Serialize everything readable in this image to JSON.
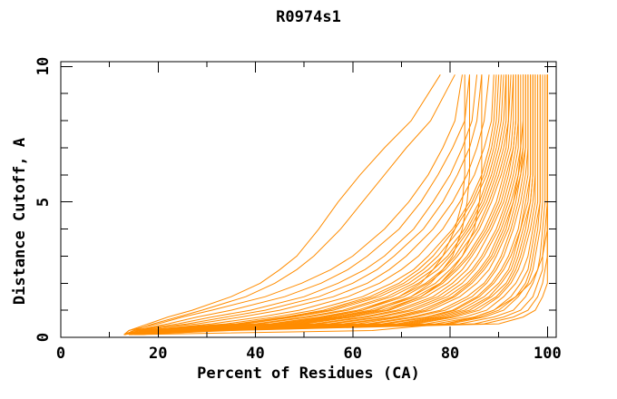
{
  "title": "R0974s1",
  "colors": {
    "curve": "#ff8c00",
    "axis": "#000000",
    "background": "#ffffff",
    "text": "#000000"
  },
  "chart_data": {
    "type": "line",
    "title": "R0974s1",
    "xlabel": "Percent of Residues (CA)",
    "ylabel": "Distance Cutoff, A",
    "xlim": [
      0,
      101.8
    ],
    "ylim": [
      0,
      10.18
    ],
    "grid": false,
    "legend": "none",
    "x_major_ticks": [
      0,
      20,
      40,
      60,
      80,
      100
    ],
    "x_minor_ticks": [
      10,
      30,
      50,
      70,
      90
    ],
    "y_major_ticks": [
      0,
      5,
      10
    ],
    "y_minor_ticks": [
      1,
      2,
      3,
      4,
      6,
      7,
      8,
      9
    ],
    "line_color": "#ff8c00",
    "cutoffs": [
      0.1,
      0.25,
      0.5,
      0.75,
      1,
      1.5,
      2,
      2.5,
      3,
      4,
      5,
      6,
      7,
      8,
      9.7
    ],
    "series": [
      [
        15,
        64,
        79,
        85,
        89,
        93.5,
        96.5,
        98,
        99,
        100,
        100,
        100,
        100,
        100,
        100
      ],
      [
        15,
        35,
        90,
        95,
        97.5,
        99,
        100,
        100,
        100,
        100,
        100,
        100,
        100,
        100,
        100
      ],
      [
        16,
        33,
        87,
        93,
        96,
        98,
        99,
        99.5,
        100,
        100,
        100,
        100,
        100,
        100,
        100
      ],
      [
        15,
        32,
        85,
        91,
        94.5,
        97,
        98,
        99,
        99,
        99.5,
        100,
        100,
        100,
        100,
        100
      ],
      [
        14,
        30,
        82,
        89,
        93,
        95.5,
        97,
        98,
        98.5,
        99,
        99.5,
        99.5,
        99.5,
        99.5,
        99.5
      ],
      [
        16,
        31,
        80,
        87,
        91,
        94,
        96,
        97,
        97.5,
        98.5,
        99,
        99,
        99,
        99,
        99
      ],
      [
        15,
        29,
        77,
        85,
        89,
        92.5,
        94.5,
        96,
        96.5,
        97.5,
        98.5,
        98.5,
        98.5,
        98.5,
        98.5
      ],
      [
        14,
        28,
        75,
        83,
        87.5,
        91,
        93.5,
        95,
        96,
        97,
        98,
        98,
        98,
        98,
        98
      ],
      [
        15,
        27,
        72,
        80,
        85,
        89.5,
        92,
        93.5,
        94.5,
        96,
        97,
        97.5,
        97.5,
        97.5,
        97.5
      ],
      [
        16,
        26,
        70,
        78,
        83,
        88,
        90.5,
        92.5,
        93.5,
        95,
        96.5,
        97,
        97,
        97,
        97
      ],
      [
        14,
        25,
        67,
        76,
        81,
        86,
        89,
        91,
        92.5,
        94.5,
        95.5,
        96.5,
        96.5,
        96.5,
        96.5
      ],
      [
        15,
        24,
        64,
        73,
        79,
        84.5,
        87.5,
        89.5,
        91,
        93,
        94.5,
        95.5,
        96,
        96,
        96
      ],
      [
        14,
        23,
        61,
        70,
        76,
        82,
        85.5,
        88,
        89.5,
        92,
        93.5,
        94.5,
        95.5,
        95.5,
        95.5
      ],
      [
        16,
        25,
        58,
        68,
        74,
        80.5,
        84,
        86.5,
        88.5,
        91,
        93,
        94,
        95,
        95,
        95
      ],
      [
        14,
        22,
        55,
        65,
        71.5,
        78.5,
        82.5,
        85,
        87,
        90,
        92,
        93.5,
        94.5,
        94.5,
        94.5
      ],
      [
        15,
        21,
        52,
        62,
        69,
        76.5,
        80.5,
        83.5,
        85.5,
        88.5,
        91,
        92.5,
        93.5,
        94,
        94
      ],
      [
        14,
        20,
        49,
        59,
        66,
        74,
        78.5,
        81.5,
        84,
        87.5,
        90,
        91.5,
        93,
        93.5,
        93.5
      ],
      [
        15,
        19,
        46,
        56,
        63.5,
        72,
        77,
        80,
        82.5,
        86,
        88.5,
        90.5,
        92,
        92.5,
        93
      ],
      [
        14,
        18,
        43,
        53,
        61,
        69.5,
        75,
        78.5,
        81,
        84.5,
        87.5,
        89.5,
        91,
        92,
        92
      ],
      [
        13,
        17,
        40,
        50,
        58,
        67,
        72.5,
        76.5,
        79.5,
        83.5,
        86.5,
        88.5,
        90,
        91,
        91.5
      ],
      [
        14,
        18,
        37,
        47,
        55,
        64.5,
        70.5,
        74.5,
        77.5,
        82,
        85,
        87.5,
        89,
        90,
        90.5
      ],
      [
        13,
        16,
        34,
        44,
        52,
        62,
        68,
        72.5,
        75.5,
        80.5,
        84,
        86.5,
        88,
        89,
        89.5
      ],
      [
        14,
        17,
        31,
        41,
        49,
        59,
        65.5,
        70,
        73.5,
        78.5,
        82,
        85,
        87,
        88.5,
        89
      ],
      [
        13,
        15,
        28,
        37,
        45,
        56,
        63,
        67.5,
        71,
        76.5,
        80.5,
        83.5,
        85.5,
        87,
        88
      ],
      [
        14,
        16,
        26,
        34,
        42,
        53,
        60,
        65,
        68.5,
        74.5,
        78.5,
        81.5,
        84,
        85.5,
        86.5
      ],
      [
        13,
        15,
        24,
        31,
        39,
        50,
        57,
        62.5,
        66.5,
        72.5,
        76.5,
        80,
        82.5,
        84.5,
        85.5
      ],
      [
        14,
        15,
        22,
        28,
        35,
        46,
        53.5,
        59,
        63,
        69.5,
        74,
        77.5,
        80.5,
        83,
        84
      ],
      [
        13,
        14,
        20,
        25,
        31,
        42,
        49.5,
        55.5,
        60,
        66.5,
        71.5,
        75.5,
        78.5,
        81,
        82.5
      ],
      [
        13,
        14,
        18,
        22,
        27,
        35,
        41,
        45,
        48.5,
        53,
        57,
        61.5,
        66.5,
        72,
        78
      ],
      [
        14,
        15,
        19,
        24,
        29,
        38,
        44,
        48.5,
        52,
        57.5,
        62,
        66.5,
        71,
        76,
        81
      ],
      [
        15,
        20,
        48,
        58,
        65,
        72,
        76,
        78.5,
        80.5,
        82.5,
        83.5,
        84,
        84,
        84,
        84
      ],
      [
        14,
        19,
        45,
        55,
        62,
        69.5,
        74,
        76.5,
        78.5,
        81,
        82.5,
        83,
        83,
        83,
        83
      ],
      [
        15,
        21,
        50,
        60,
        67,
        74,
        78,
        80.5,
        82.5,
        85,
        86,
        86.5,
        86.5,
        86.5,
        86.5
      ],
      [
        15,
        26,
        69,
        77,
        82,
        87,
        90,
        92,
        93,
        94.5,
        96,
        96.5,
        96.5,
        96.5,
        96.5
      ],
      [
        14,
        24,
        63,
        72,
        78,
        83.5,
        87,
        89,
        90.5,
        92.5,
        94,
        95,
        95.5,
        95.5,
        95.5
      ],
      [
        16,
        28,
        73,
        81,
        86,
        90,
        92.5,
        94,
        95,
        96.5,
        97.5,
        97.5,
        97.5,
        97.5,
        97.5
      ],
      [
        15,
        23,
        59,
        69,
        75,
        81,
        84.5,
        87,
        89,
        91.5,
        93,
        94.5,
        95,
        95,
        95
      ],
      [
        14,
        21,
        50,
        60,
        67.5,
        75,
        79.5,
        82.5,
        84.5,
        88,
        90.5,
        92,
        93,
        93.5,
        93.5
      ],
      [
        13,
        19,
        44,
        54,
        62,
        70.5,
        75.5,
        79,
        81.5,
        85.5,
        88,
        90,
        91.5,
        92,
        92.5
      ],
      [
        16,
        30,
        79,
        86,
        90,
        93.5,
        95.5,
        96.5,
        97,
        98,
        98.5,
        98.5,
        98.5,
        98.5,
        98.5
      ],
      [
        15,
        22,
        56,
        66,
        72.5,
        79.5,
        83.5,
        86,
        88,
        90.5,
        92.5,
        94,
        94.5,
        95,
        95
      ],
      [
        14,
        20,
        47,
        57,
        64.5,
        73,
        78,
        81,
        83.5,
        87,
        89.5,
        91,
        92.5,
        93,
        93
      ],
      [
        13,
        16,
        36,
        46,
        54,
        63.5,
        69.5,
        73.5,
        76.5,
        81,
        84.5,
        87,
        88.5,
        89.5,
        90
      ],
      [
        15,
        25,
        66,
        75,
        80.5,
        85.5,
        88.5,
        90.5,
        92,
        94,
        95,
        96,
        96,
        96,
        96
      ],
      [
        14,
        17,
        38,
        48,
        56,
        65.5,
        71.5,
        75.5,
        78.5,
        83,
        86,
        88,
        89.5,
        90.5,
        91
      ],
      [
        16,
        27,
        71,
        79,
        84,
        88.5,
        91.5,
        93,
        94,
        95.5,
        96.5,
        97,
        97,
        97,
        97
      ],
      [
        13,
        18,
        41,
        51,
        59,
        68,
        73.5,
        77.5,
        80,
        84,
        87,
        89,
        90.5,
        91.5,
        91.5
      ],
      [
        15,
        20,
        53,
        63,
        70,
        77.5,
        81.5,
        84.5,
        86.5,
        89.5,
        91.5,
        93,
        94,
        94,
        94
      ]
    ]
  }
}
